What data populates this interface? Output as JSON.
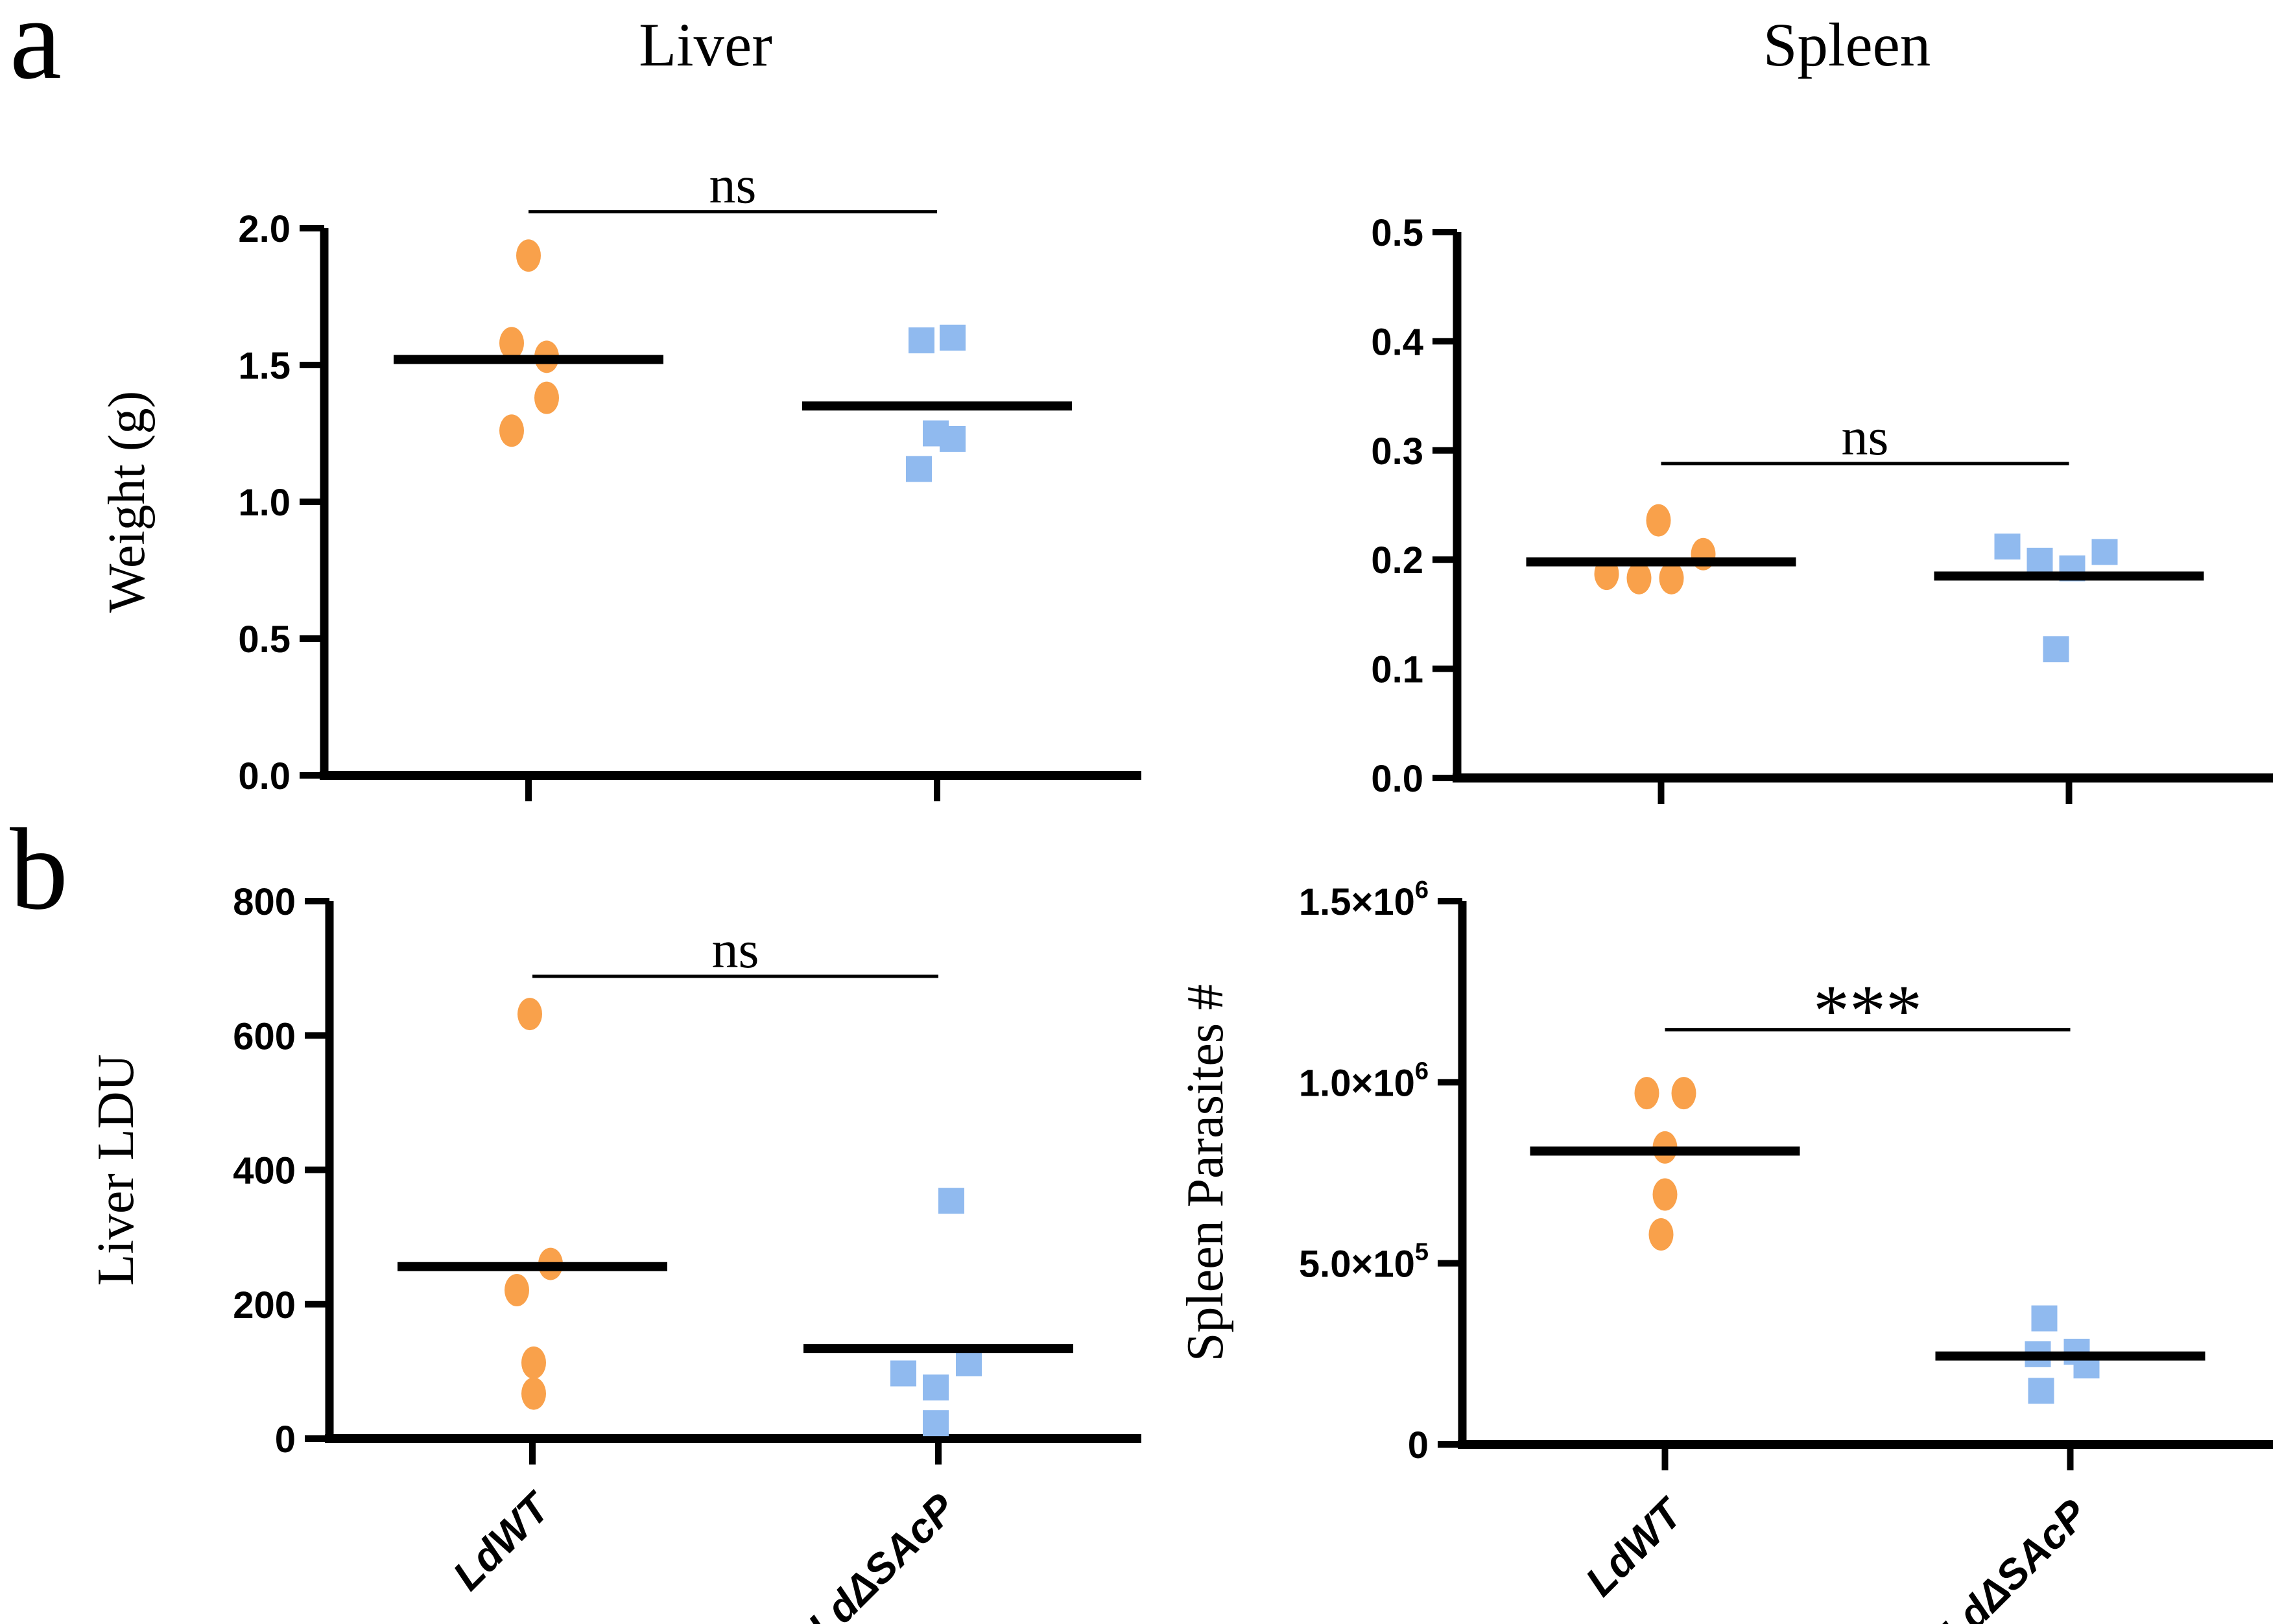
{
  "figure": {
    "panel_labels": {
      "a": "a",
      "b": "b"
    },
    "column_titles": {
      "liver": "Liver",
      "spleen": "Spleen"
    }
  },
  "colors": {
    "ldwt_orange": "#F9A14B",
    "ldsacp_blue": "#90BAEF",
    "axis_black": "#000000"
  },
  "chart_data": [
    {
      "id": "liver-weight",
      "type": "scatter",
      "panel": "a",
      "organ": "Liver",
      "ylabel": "Weight (g)",
      "ylim": [
        0,
        2.0
      ],
      "yticks": [
        {
          "v": 2.0,
          "label": "2.0"
        },
        {
          "v": 1.5,
          "label": "1.5"
        },
        {
          "v": 1.0,
          "label": "1.0"
        },
        {
          "v": 0.5,
          "label": "0.5"
        },
        {
          "v": 0.0,
          "label": "0.0"
        }
      ],
      "categories": [
        "LdWT",
        "LdΔSAcP"
      ],
      "show_category_labels": false,
      "series": [
        {
          "name": "LdWT",
          "marker": "circle",
          "color": "#F9A14B",
          "center_line": 1.52,
          "points": [
            {
              "y": 1.9,
              "dx": 0
            },
            {
              "y": 1.58,
              "dx": -26
            },
            {
              "y": 1.53,
              "dx": 28
            },
            {
              "y": 1.38,
              "dx": 28
            },
            {
              "y": 1.26,
              "dx": -26
            }
          ]
        },
        {
          "name": "LdΔSAcP",
          "marker": "square",
          "color": "#90BAEF",
          "center_line": 1.35,
          "points": [
            {
              "y": 1.59,
              "dx": -24
            },
            {
              "y": 1.6,
              "dx": 24
            },
            {
              "y": 1.25,
              "dx": -2
            },
            {
              "y": 1.23,
              "dx": 24
            },
            {
              "y": 1.12,
              "dx": -28
            }
          ]
        }
      ],
      "significance": {
        "label": "ns",
        "y": 2.06
      }
    },
    {
      "id": "spleen-weight",
      "type": "scatter",
      "panel": "a",
      "organ": "Spleen",
      "ylabel": "",
      "ylim": [
        0,
        0.5
      ],
      "yticks": [
        {
          "v": 0.5,
          "label": "0.5"
        },
        {
          "v": 0.4,
          "label": "0.4"
        },
        {
          "v": 0.3,
          "label": "0.3"
        },
        {
          "v": 0.2,
          "label": "0.2"
        },
        {
          "v": 0.1,
          "label": "0.1"
        },
        {
          "v": 0.0,
          "label": "0.0"
        }
      ],
      "categories": [
        "LdWT",
        "LdΔSAcP"
      ],
      "show_category_labels": false,
      "series": [
        {
          "name": "LdWT",
          "marker": "circle",
          "color": "#F9A14B",
          "center_line": 0.198,
          "points": [
            {
              "y": 0.236,
              "dx": -4
            },
            {
              "y": 0.205,
              "dx": 65
            },
            {
              "y": 0.187,
              "dx": -84
            },
            {
              "y": 0.183,
              "dx": -34
            },
            {
              "y": 0.183,
              "dx": 16
            }
          ]
        },
        {
          "name": "LdΔSAcP",
          "marker": "square",
          "color": "#90BAEF",
          "center_line": 0.185,
          "points": [
            {
              "y": 0.212,
              "dx": -95
            },
            {
              "y": 0.199,
              "dx": -45
            },
            {
              "y": 0.192,
              "dx": 5
            },
            {
              "y": 0.207,
              "dx": 55
            },
            {
              "y": 0.118,
              "dx": -20
            }
          ]
        }
      ],
      "significance": {
        "label": "ns",
        "y": 0.288
      }
    },
    {
      "id": "liver-ldu",
      "type": "scatter",
      "panel": "b",
      "organ": "Liver",
      "ylabel": "Liver LDU",
      "ylim": [
        0,
        800
      ],
      "yticks": [
        {
          "v": 800,
          "label": "800"
        },
        {
          "v": 600,
          "label": "600"
        },
        {
          "v": 400,
          "label": "400"
        },
        {
          "v": 200,
          "label": "200"
        },
        {
          "v": 0,
          "label": "0"
        }
      ],
      "categories": [
        "LdWT",
        "LdΔSAcP"
      ],
      "show_category_labels": true,
      "series": [
        {
          "name": "LdWT",
          "marker": "circle",
          "color": "#F9A14B",
          "center_line": 256,
          "points": [
            {
              "y": 632,
              "dx": -4
            },
            {
              "y": 260,
              "dx": 28
            },
            {
              "y": 221,
              "dx": -24
            },
            {
              "y": 113,
              "dx": 2
            },
            {
              "y": 67,
              "dx": 2
            }
          ]
        },
        {
          "name": "LdΔSAcP",
          "marker": "square",
          "color": "#90BAEF",
          "center_line": 134,
          "points": [
            {
              "y": 354,
              "dx": 20
            },
            {
              "y": 112,
              "dx": 47
            },
            {
              "y": 97,
              "dx": -54
            },
            {
              "y": 76,
              "dx": -4
            },
            {
              "y": 23,
              "dx": -4
            }
          ]
        }
      ],
      "significance": {
        "label": "ns",
        "y": 688
      }
    },
    {
      "id": "spleen-parasites",
      "type": "scatter",
      "panel": "b",
      "organ": "Spleen",
      "ylabel": "Spleen Parasites #",
      "ylim": [
        0,
        1500000
      ],
      "yticks": [
        {
          "v": 1500000,
          "label": "1.5×10",
          "exp": "6"
        },
        {
          "v": 1000000,
          "label": "1.0×10",
          "exp": "6"
        },
        {
          "v": 500000,
          "label": "5.0×10",
          "exp": "5"
        },
        {
          "v": 0,
          "label": "0"
        }
      ],
      "categories": [
        "LdWT",
        "LdΔSAcP"
      ],
      "show_category_labels": true,
      "series": [
        {
          "name": "LdWT",
          "marker": "circle",
          "color": "#F9A14B",
          "center_line": 810000,
          "points": [
            {
              "y": 970000,
              "dx": -28
            },
            {
              "y": 970000,
              "dx": 29
            },
            {
              "y": 820000,
              "dx": 0
            },
            {
              "y": 690000,
              "dx": 0
            },
            {
              "y": 580000,
              "dx": -6
            }
          ]
        },
        {
          "name": "LdΔSAcP",
          "marker": "square",
          "color": "#90BAEF",
          "center_line": 244000,
          "points": [
            {
              "y": 348000,
              "dx": -40
            },
            {
              "y": 256000,
              "dx": 10
            },
            {
              "y": 249000,
              "dx": -50
            },
            {
              "y": 218000,
              "dx": 25
            },
            {
              "y": 148000,
              "dx": -45
            }
          ]
        }
      ],
      "significance": {
        "label": "***",
        "y": 1145000
      }
    }
  ]
}
